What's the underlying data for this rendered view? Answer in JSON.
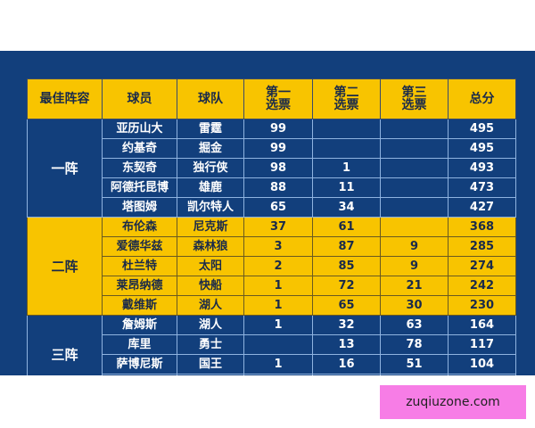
{
  "table": {
    "headers": [
      "最佳阵容",
      "球员",
      "球队",
      "第一\n选票",
      "第二\n选票",
      "第三\n选票",
      "总分"
    ],
    "groups": [
      {
        "name": "一阵",
        "style": "blue",
        "rows": [
          [
            "亚历山大",
            "雷霆",
            "99",
            "",
            "",
            "495"
          ],
          [
            "约基奇",
            "掘金",
            "99",
            "",
            "",
            "495"
          ],
          [
            "东契奇",
            "独行侠",
            "98",
            "1",
            "",
            "493"
          ],
          [
            "阿德托昆博",
            "雄鹿",
            "88",
            "11",
            "",
            "473"
          ],
          [
            "塔图姆",
            "凯尔特人",
            "65",
            "34",
            "",
            "427"
          ]
        ]
      },
      {
        "name": "二阵",
        "style": "gold",
        "rows": [
          [
            "布伦森",
            "尼克斯",
            "37",
            "61",
            "",
            "368"
          ],
          [
            "爱德华兹",
            "森林狼",
            "3",
            "87",
            "9",
            "285"
          ],
          [
            "杜兰特",
            "太阳",
            "2",
            "85",
            "9",
            "274"
          ],
          [
            "莱昂纳德",
            "快船",
            "1",
            "72",
            "21",
            "242"
          ],
          [
            "戴维斯",
            "湖人",
            "1",
            "65",
            "30",
            "230"
          ]
        ]
      },
      {
        "name": "三阵",
        "style": "blue",
        "rows": [
          [
            "詹姆斯",
            "湖人",
            "1",
            "32",
            "63",
            "164"
          ],
          [
            "库里",
            "勇士",
            "",
            "13",
            "78",
            "117"
          ],
          [
            "萨博尼斯",
            "国王",
            "1",
            "16",
            "51",
            "104"
          ],
          [
            "",
            "",
            "",
            "",
            "",
            ""
          ]
        ]
      }
    ]
  },
  "colors": {
    "blue": "#123f7c",
    "gold": "#f8c400",
    "watermark": "#f77de6"
  },
  "watermark": "zuqiuzone.com"
}
